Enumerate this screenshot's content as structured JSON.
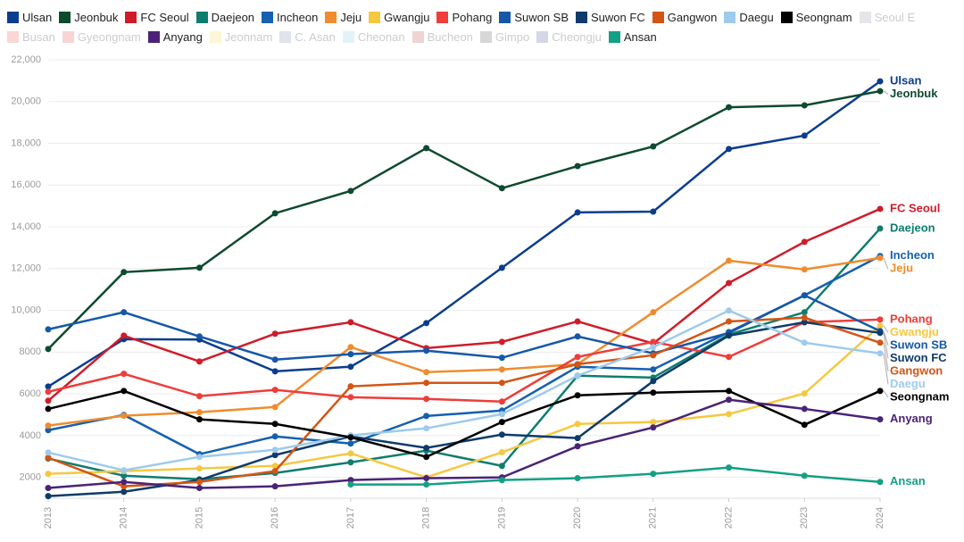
{
  "chart_data": {
    "type": "line",
    "x": [
      2013,
      2014,
      2015,
      2016,
      2017,
      2018,
      2019,
      2020,
      2021,
      2022,
      2023,
      2024
    ],
    "xlim": [
      2013,
      2024
    ],
    "xticks": [
      2013,
      2014,
      2015,
      2016,
      2017,
      2018,
      2019,
      2020,
      2021,
      2022,
      2023,
      2024
    ],
    "ylim": [
      1000,
      22000
    ],
    "yticks": [
      {
        "value": 2000,
        "label": "2000"
      },
      {
        "value": 4000,
        "label": "4000"
      },
      {
        "value": 6000,
        "label": "6000"
      },
      {
        "value": 8000,
        "label": "8000"
      },
      {
        "value": 10000,
        "label": "10,000"
      },
      {
        "value": 12000,
        "label": "12,000"
      },
      {
        "value": 14000,
        "label": "14,000"
      },
      {
        "value": 16000,
        "label": "16,000"
      },
      {
        "value": 18000,
        "label": "18,000"
      },
      {
        "value": 20000,
        "label": "20,000"
      },
      {
        "value": 22000,
        "label": "22,000"
      }
    ],
    "grid": true,
    "series": [
      {
        "name": "Ulsan",
        "color": "#0a3d8f",
        "values": [
          6350,
          8620,
          8600,
          7080,
          7300,
          9390,
          12040,
          14690,
          14730,
          17730,
          18370,
          20970
        ]
      },
      {
        "name": "Jeonbuk",
        "color": "#0d4a2e",
        "values": [
          8150,
          11830,
          12040,
          14650,
          15720,
          17770,
          15850,
          16910,
          17850,
          19730,
          19820,
          20500
        ]
      },
      {
        "name": "FC Seoul",
        "color": "#d01c2a",
        "values": [
          5670,
          8790,
          7550,
          8880,
          9430,
          8190,
          8490,
          9470,
          8410,
          11310,
          13280,
          14860
        ]
      },
      {
        "name": "Daejeon",
        "color": "#0f7d6e",
        "values": [
          2900,
          2080,
          1910,
          2210,
          2720,
          3280,
          2550,
          6870,
          6780,
          8840,
          9910,
          13920
        ]
      },
      {
        "name": "Incheon",
        "color": "#1560b0",
        "values": [
          4260,
          4990,
          3110,
          3960,
          3620,
          4940,
          5200,
          7300,
          7170,
          8960,
          10720,
          12600
        ]
      },
      {
        "name": "Jeju",
        "color": "#ef8c2f",
        "values": [
          4480,
          4950,
          5120,
          5370,
          8240,
          7040,
          7170,
          7420,
          9910,
          12380,
          11960,
          12510
        ]
      },
      {
        "name": "Gwangju",
        "color": "#f5c842",
        "values": [
          2170,
          2300,
          2430,
          2550,
          3150,
          2000,
          3200,
          4560,
          4650,
          5030,
          6020,
          9260
        ]
      },
      {
        "name": "Pohang",
        "color": "#ee3d3a",
        "values": [
          6100,
          6960,
          5890,
          6190,
          5840,
          5760,
          5630,
          7770,
          8490,
          7770,
          9430,
          9560
        ]
      },
      {
        "name": "Suwon SB",
        "color": "#1558a8",
        "values": [
          9090,
          9910,
          8750,
          7640,
          7900,
          8070,
          7730,
          8750,
          7940,
          8920,
          10720,
          9010
        ]
      },
      {
        "name": "Suwon FC",
        "color": "#0f3b6b",
        "values": [
          1100,
          1310,
          1870,
          3070,
          3960,
          3410,
          4050,
          3880,
          6610,
          8790,
          9430,
          8920
        ]
      },
      {
        "name": "Gangwon",
        "color": "#d35515",
        "values": [
          2940,
          1570,
          1780,
          2300,
          6360,
          6530,
          6530,
          7420,
          7850,
          9470,
          9650,
          8450
        ]
      },
      {
        "name": "Daegu",
        "color": "#9ecbec",
        "values": [
          3190,
          2340,
          2980,
          3320,
          4010,
          4350,
          5030,
          6870,
          8240,
          9990,
          8450,
          7940
        ]
      },
      {
        "name": "Seongnam",
        "color": "#000000",
        "values": [
          5280,
          6140,
          4780,
          4560,
          3920,
          2980,
          4650,
          5930,
          6060,
          6140,
          4520,
          6140
        ]
      },
      {
        "name": "Seoul E",
        "color": "#8a8f9a",
        "hidden": true
      },
      {
        "name": "Busan",
        "color": "#e8453c",
        "hidden": true
      },
      {
        "name": "Gyeongnam",
        "color": "#e03a3e",
        "hidden": true
      },
      {
        "name": "Anyang",
        "color": "#4a2378",
        "values": [
          1490,
          1780,
          1490,
          1570,
          1870,
          1960,
          2000,
          3490,
          4390,
          5720,
          5280,
          4780
        ]
      },
      {
        "name": "Jeonnam",
        "color": "#f5d44a",
        "hidden": true
      },
      {
        "name": "C. Asan",
        "color": "#6a7fa8",
        "hidden": true
      },
      {
        "name": "Cheonan",
        "color": "#7fc4e0",
        "hidden": true
      },
      {
        "name": "Bucheon",
        "color": "#b03a3a",
        "hidden": true
      },
      {
        "name": "Gimpo",
        "color": "#4a4a4a",
        "hidden": true
      },
      {
        "name": "Cheongju",
        "color": "#3a4f8a",
        "hidden": true
      },
      {
        "name": "Ansan",
        "color": "#14a085",
        "values": [
          null,
          null,
          null,
          null,
          1660,
          1660,
          1870,
          1960,
          2170,
          2470,
          2080,
          1780
        ]
      }
    ]
  }
}
